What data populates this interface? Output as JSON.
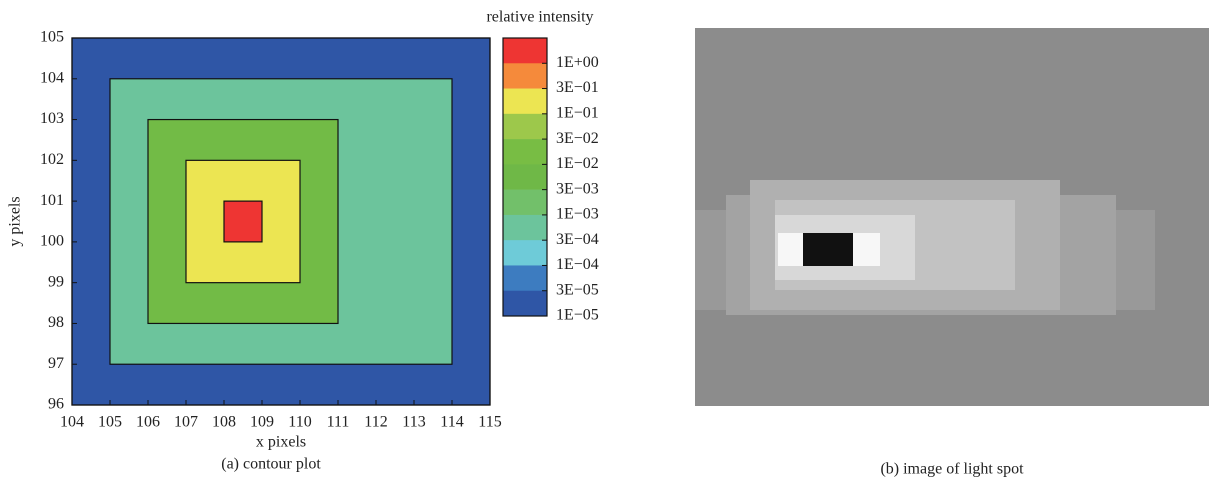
{
  "chart_data": {
    "type": "contour",
    "caption": "(a) contour plot",
    "xlabel": "x pixels",
    "ylabel": "y pixels",
    "xlim": [
      104,
      115
    ],
    "ylim": [
      96,
      105
    ],
    "xticks": [
      104,
      105,
      106,
      107,
      108,
      109,
      110,
      111,
      112,
      113,
      114,
      115
    ],
    "yticks": [
      96,
      97,
      98,
      99,
      100,
      101,
      102,
      103,
      104,
      105
    ],
    "regions": [
      {
        "x": [
          104,
          115
        ],
        "y": [
          96,
          105
        ],
        "color": "#2f56a6"
      },
      {
        "x": [
          105,
          114
        ],
        "y": [
          97,
          104
        ],
        "color": "#6cc49c"
      },
      {
        "x": [
          106,
          111
        ],
        "y": [
          98,
          103
        ],
        "color": "#72bb46"
      },
      {
        "x": [
          107,
          110
        ],
        "y": [
          99,
          102
        ],
        "color": "#ece552"
      },
      {
        "x": [
          108,
          109
        ],
        "y": [
          100,
          101
        ],
        "color": "#ee3533"
      }
    ],
    "colorbar": {
      "title": "relative intensity",
      "colors": [
        "#ee3533",
        "#f58a3b",
        "#ece552",
        "#9dc84b",
        "#78bd44",
        "#6fb847",
        "#72c06a",
        "#6cc49c",
        "#6ecbd8",
        "#3d7cc0",
        "#2f56a6"
      ],
      "labels": [
        "1E+00",
        "3E−01",
        "1E−01",
        "3E−02",
        "1E−02",
        "3E−03",
        "1E−03",
        "3E−04",
        "1E−04",
        "3E−05",
        "1E−05"
      ]
    }
  },
  "image": {
    "caption": "(b) image of light spot"
  }
}
